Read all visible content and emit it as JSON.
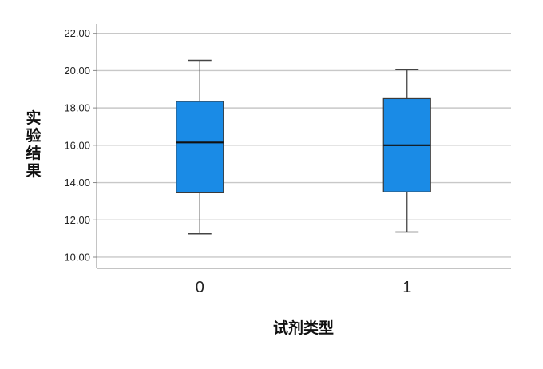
{
  "chart_data": {
    "type": "box",
    "xlabel": "试剂类型",
    "ylabel": "实验结果",
    "ylim": [
      9.4,
      22.5
    ],
    "yticks": [
      10,
      12,
      14,
      16,
      18,
      20,
      22
    ],
    "ytick_labels": [
      "10.00",
      "12.00",
      "14.00",
      "16.00",
      "18.00",
      "20.00",
      "22.00"
    ],
    "grid": true,
    "box_color": "#1a8be6",
    "categories": [
      "0",
      "1"
    ],
    "boxes": [
      {
        "category": "0",
        "min": 11.25,
        "q1": 13.45,
        "median": 16.15,
        "q3": 18.35,
        "max": 20.55
      },
      {
        "category": "1",
        "min": 11.35,
        "q1": 13.5,
        "median": 16.0,
        "q3": 18.5,
        "max": 20.05
      }
    ]
  }
}
